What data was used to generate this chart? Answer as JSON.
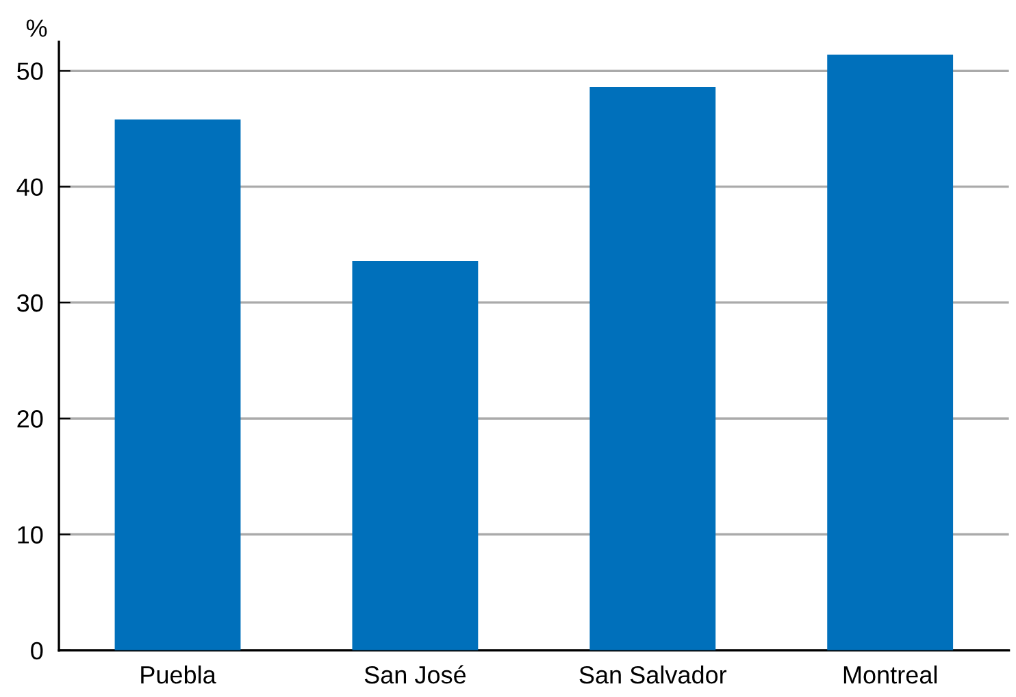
{
  "chart_data": {
    "type": "bar",
    "ylabel": "%",
    "categories": [
      "Puebla",
      "San José",
      "San Salvador",
      "Montreal"
    ],
    "values": [
      45.8,
      33.6,
      48.6,
      51.4
    ],
    "color": "#0070bb",
    "ylim": [
      0,
      52.5
    ],
    "yticks": [
      0,
      10,
      20,
      30,
      40,
      50
    ],
    "grid": "y",
    "legend": false
  }
}
